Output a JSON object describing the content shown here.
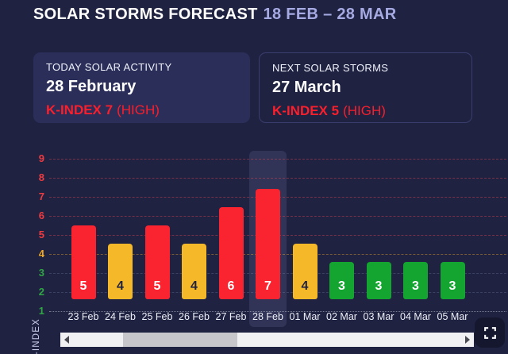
{
  "header": {
    "title": "SOLAR STORMS FORECAST",
    "date_range": "18 FEB – 28 MAR"
  },
  "cards": [
    {
      "label": "TODAY SOLAR ACTIVITY",
      "date": "28 February",
      "kindex": "K-INDEX 7",
      "severity": "(HIGH)"
    },
    {
      "label": "NEXT SOLAR STORMS",
      "date": "27 March",
      "kindex": "K-INDEX 5",
      "severity": "(HIGH)"
    }
  ],
  "chart_data": {
    "type": "bar",
    "categories": [
      "23 Feb",
      "24 Feb",
      "25 Feb",
      "26 Feb",
      "27 Feb",
      "28 Feb",
      "01 Mar",
      "02 Mar",
      "03 Mar",
      "04 Mar",
      "05 Mar"
    ],
    "values": [
      5,
      4,
      5,
      4,
      6,
      7,
      4,
      3,
      3,
      3,
      3
    ],
    "highlighted_category": "28 Feb",
    "ylabel": "K-INDEX",
    "yticks": [
      1,
      2,
      3,
      4,
      5,
      6,
      7,
      8,
      9
    ],
    "ylim": [
      0,
      9
    ],
    "grid": "dashed horizontal lines colored by severity level",
    "legend": "none",
    "severity_rule": "value 5-9 high(red), 4 medium(amber), 1-3 low(green)"
  },
  "colors": {
    "background": "#1f2241",
    "card_background": "#2b2e58",
    "red_bar": "#fa2430",
    "amber_bar": "#f5b829",
    "green_bar": "#13a52f",
    "red_tick": "#ef3b40",
    "amber_tick": "#efa824",
    "green_tick": "#2fa544",
    "title_accent": "#a6aae2",
    "alert_text": "#fa1f2c"
  },
  "icons": {
    "fullscreen": "fullscreen-expand-icon",
    "scroll_left": "left-arrow-icon",
    "scroll_right": "right-arrow-icon"
  }
}
